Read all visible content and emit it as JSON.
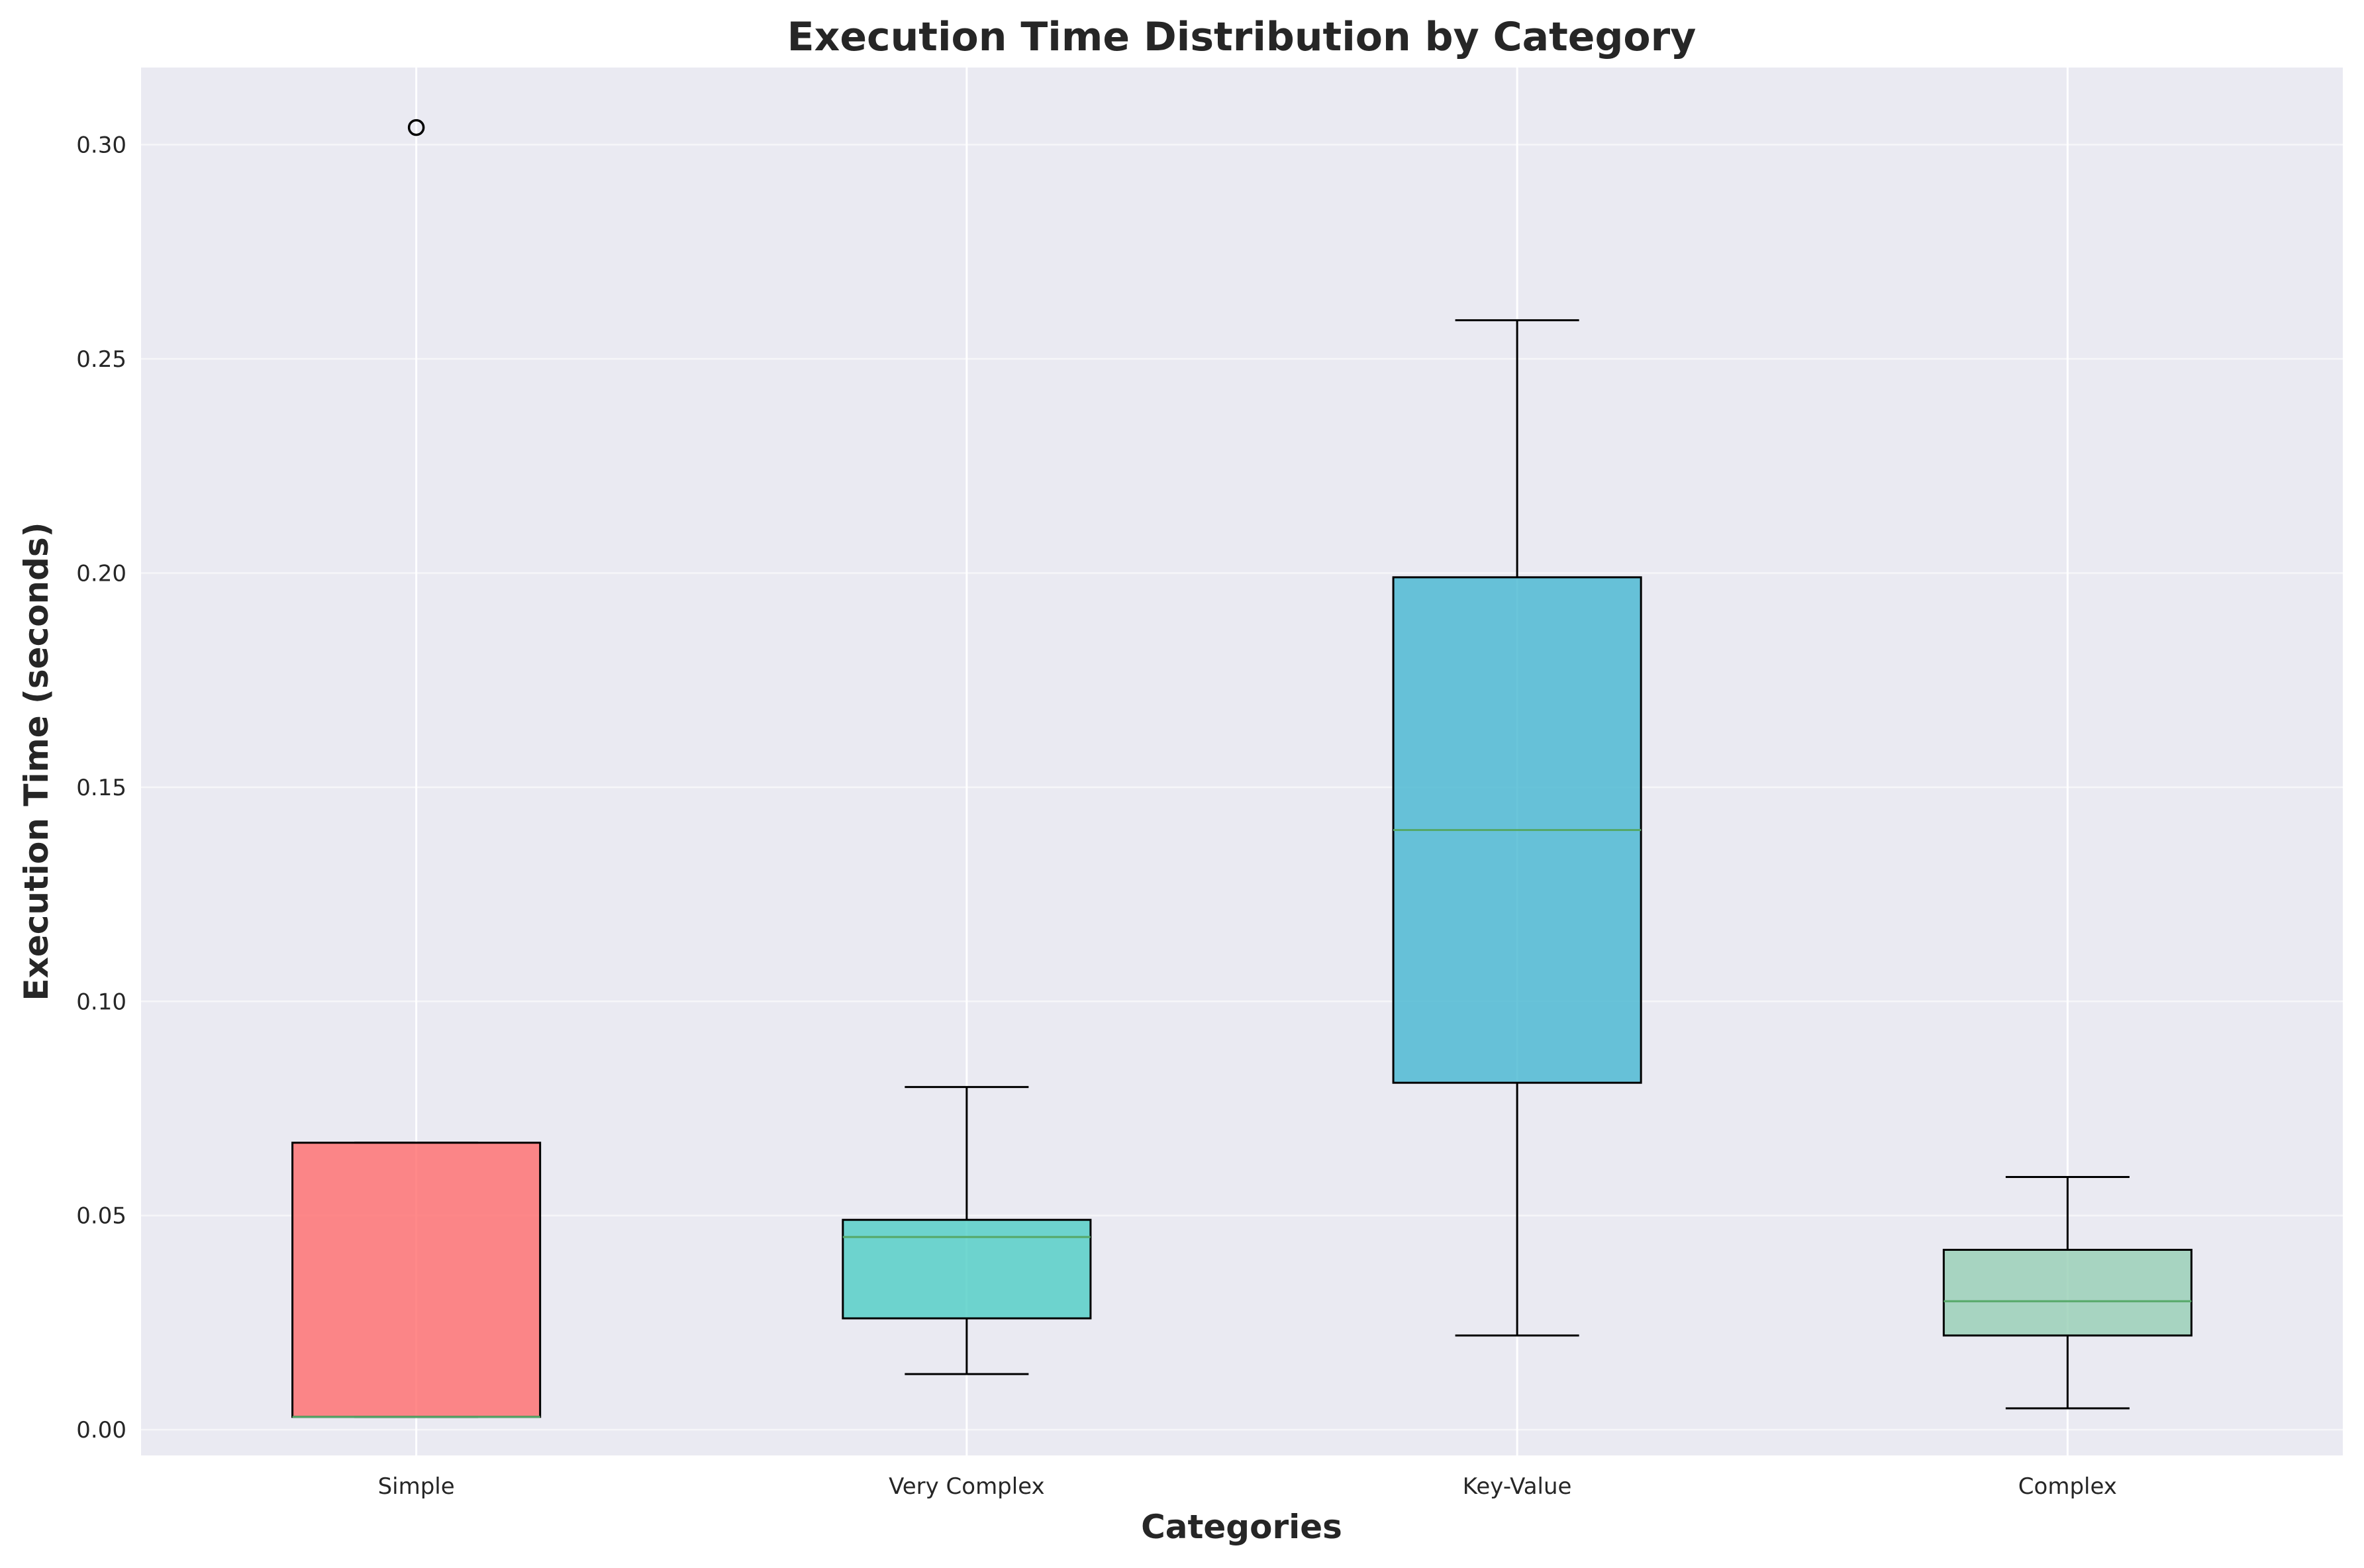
{
  "chart_data": {
    "type": "box",
    "title": "Execution Time Distribution by Category",
    "xlabel": "Categories",
    "ylabel": "Execution Time (seconds)",
    "ylim": [
      -0.006,
      0.318
    ],
    "yticks": [
      0.0,
      0.05,
      0.1,
      0.15,
      0.2,
      0.25,
      0.3
    ],
    "ytick_labels": [
      "0.00",
      "0.05",
      "0.10",
      "0.15",
      "0.20",
      "0.25",
      "0.30"
    ],
    "grid": true,
    "categories": [
      "Simple",
      "Very Complex",
      "Key-Value",
      "Complex"
    ],
    "boxes": [
      {
        "name": "Simple",
        "whisker_low": 0.003,
        "q1": 0.003,
        "median": 0.003,
        "q3": 0.067,
        "whisker_high": 0.067,
        "outliers": [
          0.304
        ],
        "color": "#FF6B6B"
      },
      {
        "name": "Very Complex",
        "whisker_low": 0.013,
        "q1": 0.026,
        "median": 0.045,
        "q3": 0.049,
        "whisker_high": 0.08,
        "outliers": [],
        "color": "#4ECDC4"
      },
      {
        "name": "Key-Value",
        "whisker_low": 0.022,
        "q1": 0.081,
        "median": 0.14,
        "q3": 0.199,
        "whisker_high": 0.259,
        "outliers": [],
        "color": "#45B7D1"
      },
      {
        "name": "Complex",
        "whisker_low": 0.005,
        "q1": 0.022,
        "median": 0.03,
        "q3": 0.042,
        "whisker_high": 0.059,
        "outliers": [],
        "color": "#96CEB4"
      }
    ],
    "median_color": "#55A868",
    "background_color": "#EAEAF2"
  }
}
